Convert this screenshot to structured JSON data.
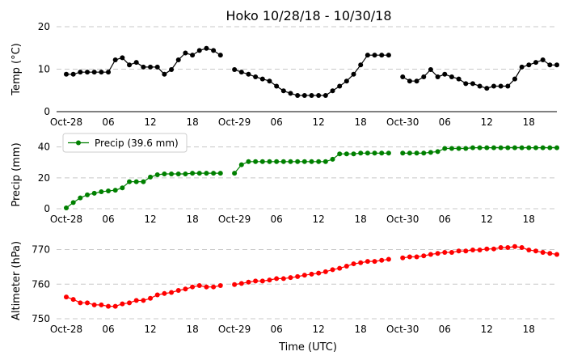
{
  "chart_data": {
    "type": "line",
    "title": "Hoko 10/28/18 - 10/30/18",
    "xlabel": "Time (UTC)",
    "x_start": "2018-10-28T00:00",
    "x_step_hours": 1,
    "x_range_hours": [
      0,
      70
    ],
    "x_ticks": [
      {
        "hour": 0,
        "label": "Oct-28"
      },
      {
        "hour": 6,
        "label": "06"
      },
      {
        "hour": 12,
        "label": "12"
      },
      {
        "hour": 18,
        "label": "18"
      },
      {
        "hour": 24,
        "label": "Oct-29"
      },
      {
        "hour": 30,
        "label": "06"
      },
      {
        "hour": 36,
        "label": "12"
      },
      {
        "hour": 42,
        "label": "18"
      },
      {
        "hour": 48,
        "label": "Oct-30"
      },
      {
        "hour": 54,
        "label": "06"
      },
      {
        "hour": 60,
        "label": "12"
      },
      {
        "hour": 66,
        "label": "18"
      }
    ],
    "panels": [
      {
        "id": "temp",
        "ylabel": "Temp (°C)",
        "ylim": [
          0,
          20
        ],
        "yticks": [
          0,
          10,
          20
        ],
        "grid": true,
        "color": "#000000",
        "series": [
          {
            "values": [
              8.8,
              8.8,
              9.3,
              9.3,
              9.3,
              9.3,
              9.3,
              12.2,
              12.7,
              11.0,
              11.6,
              10.5,
              10.5,
              10.5,
              8.8,
              9.9,
              12.2,
              13.8,
              13.3,
              14.4,
              14.9,
              14.4,
              13.3,
              null,
              9.9,
              9.3,
              8.8,
              8.2,
              7.7,
              7.2,
              6.0,
              4.9,
              4.3,
              3.8,
              3.8,
              3.8,
              3.8,
              3.8,
              4.9,
              6.0,
              7.2,
              8.8,
              11.0,
              13.3,
              13.3,
              13.3,
              13.3,
              null,
              8.2,
              7.2,
              7.2,
              8.2,
              9.9,
              8.2,
              8.8,
              8.2,
              7.7,
              6.6,
              6.6,
              6.0,
              5.5,
              6.0,
              6.0,
              6.0,
              7.7,
              10.5,
              11.0,
              11.6,
              12.2,
              11.0,
              11.0
            ]
          }
        ]
      },
      {
        "id": "precip",
        "ylabel": "Precip (mm)",
        "ylim": [
          0,
          44
        ],
        "yticks": [
          0,
          20,
          40
        ],
        "grid": true,
        "color": "#008000",
        "legend_position": "upper-left",
        "series": [
          {
            "name": "Precip (39.6 mm)",
            "values": [
              0.5,
              4.0,
              7.0,
              9.0,
              10.0,
              11.0,
              11.5,
              12.0,
              13.5,
              17.5,
              17.5,
              17.5,
              20.5,
              22.0,
              22.5,
              22.5,
              22.5,
              22.5,
              23.0,
              23.0,
              23.0,
              23.0,
              23.0,
              null,
              23.0,
              28.5,
              30.5,
              30.5,
              30.5,
              30.5,
              30.5,
              30.5,
              30.5,
              30.5,
              30.5,
              30.5,
              30.5,
              30.5,
              32.0,
              35.5,
              35.5,
              35.5,
              36.0,
              36.0,
              36.0,
              36.0,
              36.0,
              null,
              36.0,
              36.0,
              36.0,
              36.0,
              36.5,
              37.0,
              39.0,
              39.0,
              39.0,
              39.0,
              39.5,
              39.5,
              39.5,
              39.5,
              39.5,
              39.5,
              39.5,
              39.5,
              39.5,
              39.5,
              39.5,
              39.5,
              39.5
            ]
          }
        ]
      },
      {
        "id": "altimeter",
        "ylabel": "Altimeter (hPa)",
        "ylim": [
          750,
          772
        ],
        "yticks": [
          750,
          760,
          770
        ],
        "grid": true,
        "color": "#ff0000",
        "series": [
          {
            "values": [
              756.3,
              755.6,
              754.6,
              754.6,
              754.0,
              754.0,
              753.6,
              753.6,
              754.3,
              754.6,
              755.3,
              755.3,
              755.9,
              756.9,
              757.3,
              757.6,
              758.2,
              758.6,
              759.2,
              759.6,
              759.2,
              759.2,
              759.6,
              null,
              759.9,
              760.2,
              760.6,
              760.9,
              760.9,
              761.2,
              761.6,
              761.6,
              761.9,
              762.2,
              762.6,
              762.9,
              763.2,
              763.6,
              764.2,
              764.6,
              765.2,
              765.9,
              766.2,
              766.6,
              766.6,
              766.9,
              767.2,
              null,
              767.6,
              767.9,
              767.9,
              768.2,
              768.6,
              768.9,
              769.2,
              769.2,
              769.6,
              769.6,
              769.9,
              769.9,
              770.2,
              770.2,
              770.6,
              770.6,
              770.9,
              770.6,
              769.9,
              769.6,
              769.2,
              768.9,
              768.6
            ]
          }
        ]
      }
    ]
  }
}
